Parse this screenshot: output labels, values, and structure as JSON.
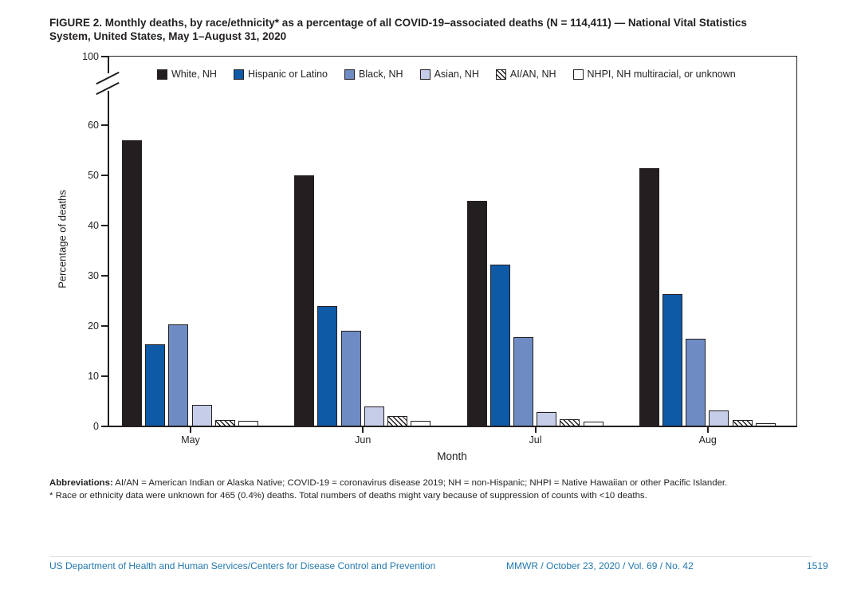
{
  "figure": {
    "title_line1": "FIGURE 2. Monthly deaths, by race/ethnicity* as a percentage of all COVID-19–associated deaths (N = 114,411) — National Vital Statistics",
    "title_line2": "System, United States, May 1–August 31, 2020"
  },
  "chart_data": {
    "type": "bar",
    "title": "FIGURE 2. Monthly deaths, by race/ethnicity* as a percentage of all COVID-19–associated deaths (N = 114,411) — National Vital Statistics System, United States, May 1–August 31, 2020",
    "categories": [
      "May",
      "Jun",
      "Jul",
      "Aug"
    ],
    "series": [
      {
        "name": "White, NH",
        "color": "#231f20",
        "pattern": "solid",
        "values": [
          57.0,
          50.0,
          45.0,
          51.5
        ]
      },
      {
        "name": "Hispanic or Latino",
        "color": "#0e5aa7",
        "pattern": "solid",
        "values": [
          16.3,
          24.0,
          32.3,
          26.4
        ]
      },
      {
        "name": "Black, NH",
        "color": "#6e8cc3",
        "pattern": "solid",
        "values": [
          20.3,
          19.0,
          17.8,
          17.4
        ]
      },
      {
        "name": "Asian, NH",
        "color": "#c5cde9",
        "pattern": "solid",
        "values": [
          4.3,
          3.9,
          2.9,
          3.1
        ]
      },
      {
        "name": "AI/AN, NH",
        "color": "#ffffff",
        "pattern": "hatch",
        "values": [
          1.2,
          2.1,
          1.4,
          1.2
        ]
      },
      {
        "name": "NHPI, NH multiracial, or unknown",
        "color": "#ffffff",
        "pattern": "solid",
        "values": [
          1.1,
          1.1,
          0.9,
          0.7
        ]
      }
    ],
    "xlabel": "Month",
    "ylabel": "Percentage of deaths",
    "yticks": [
      0,
      10,
      20,
      30,
      40,
      50,
      60,
      100
    ],
    "ylim": [
      0,
      100
    ],
    "axis_break": {
      "between": [
        60,
        100
      ]
    },
    "legend_position": "top",
    "grid": false
  },
  "footnotes": {
    "abbreviations_label": "Abbreviations:",
    "abbreviations_text": " AI/AN = American Indian or Alaska Native; COVID-19 = coronavirus disease 2019; NH = non-Hispanic; NHPI = Native Hawaiian or other Pacific Islander.",
    "asterisk_note": "* Race or ethnicity data were unknown for 465 (0.4%) deaths. Total numbers of deaths might vary because of suppression of counts with <10 deaths."
  },
  "footer": {
    "left_text": "US Department of Health and Human Services/Centers for Disease Control and Prevention",
    "center_text": "MMWR / October 23, 2020 / Vol. 69 / No. 42",
    "page_number": "1519",
    "accent_color": "#2579ad"
  }
}
